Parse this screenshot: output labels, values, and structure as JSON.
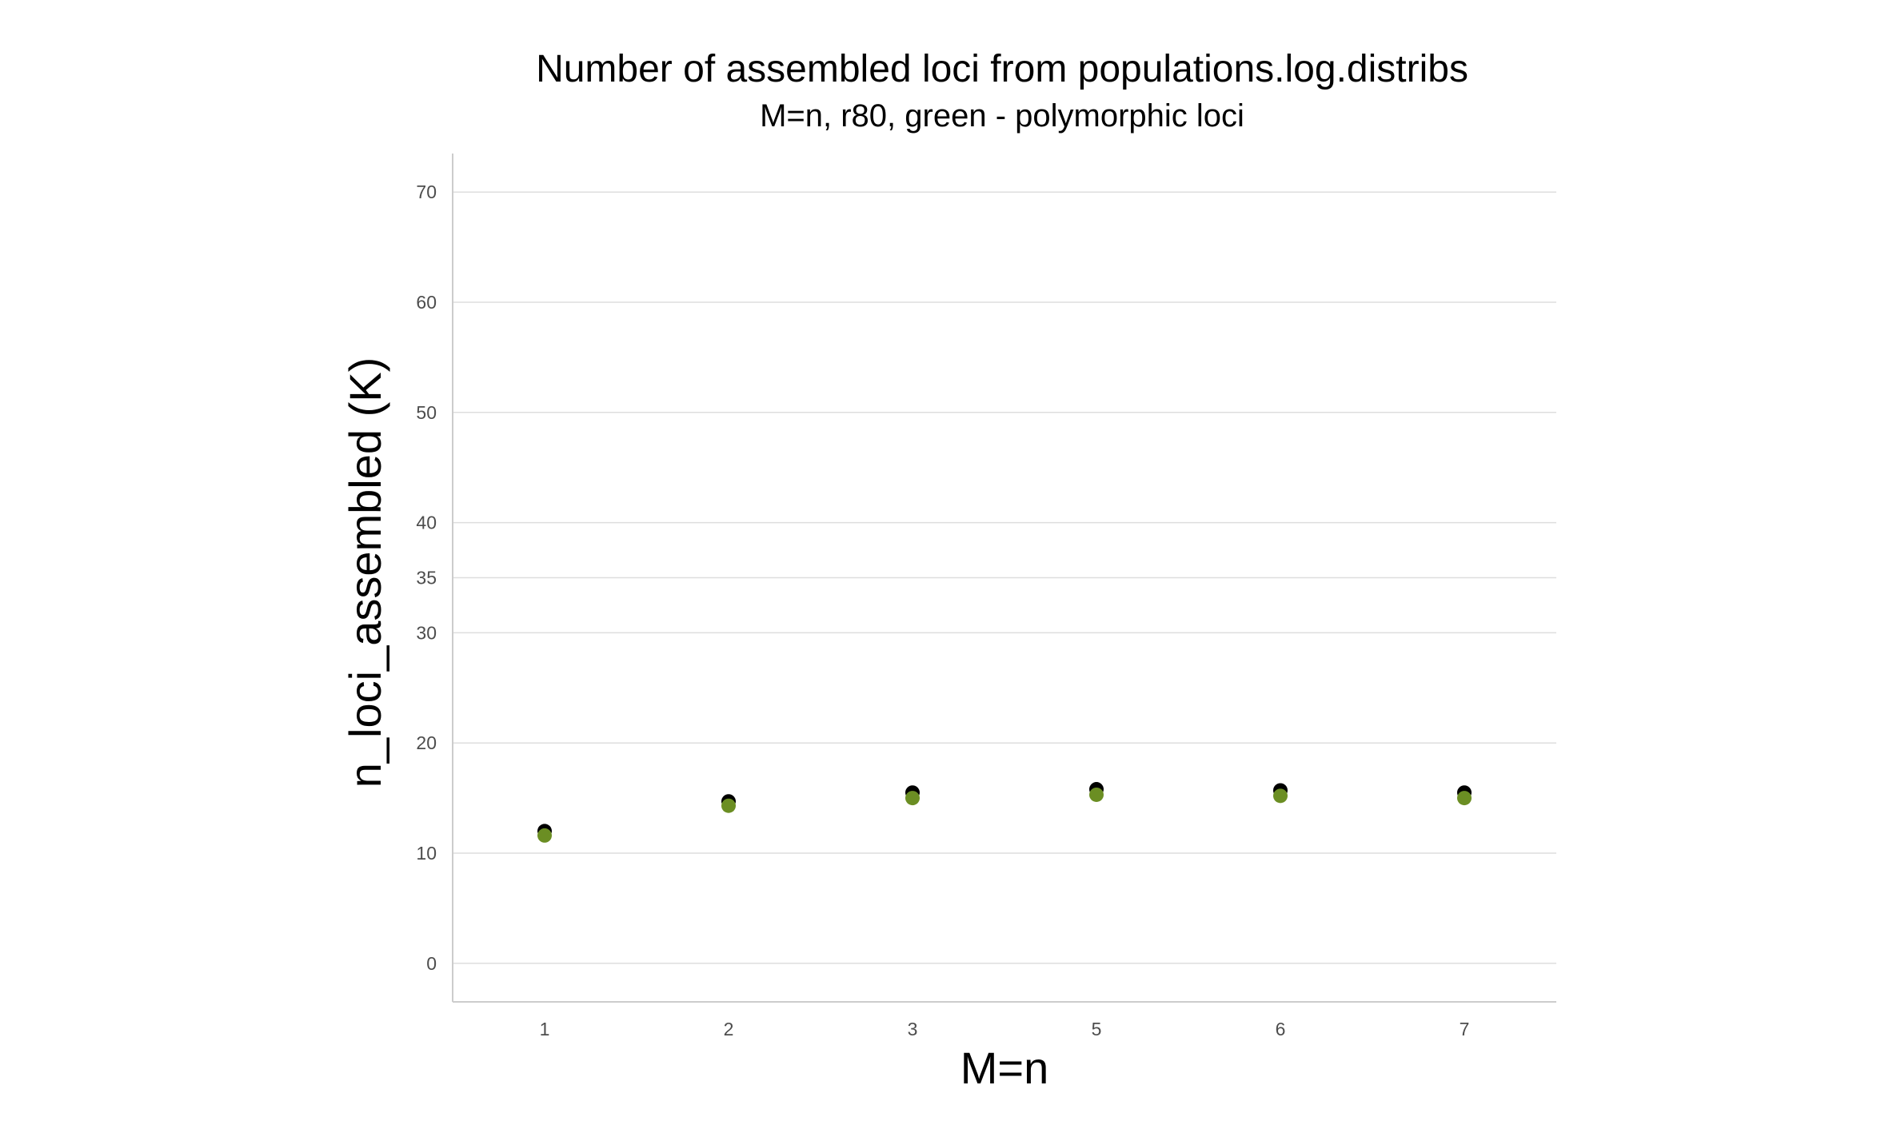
{
  "chart_data": {
    "type": "scatter",
    "title": "Number of assembled loci from populations.log.distribs",
    "subtitle": "M=n, r80, green - polymorphic loci",
    "xlabel": "M=n",
    "ylabel": "n_loci_assembled (K)",
    "categories": [
      "1",
      "2",
      "3",
      "5",
      "6",
      "7"
    ],
    "y_ticks": [
      0,
      10,
      20,
      30,
      35,
      40,
      50,
      60,
      70
    ],
    "ylim": [
      -3.5,
      73.5
    ],
    "grid": true,
    "legend": "none",
    "series": [
      {
        "color": "#000000",
        "values": [
          12.0,
          14.7,
          15.5,
          15.8,
          15.7,
          15.5
        ]
      },
      {
        "color": "#6b8e23",
        "values": [
          11.6,
          14.3,
          15.0,
          15.3,
          15.2,
          15.0
        ]
      }
    ]
  }
}
